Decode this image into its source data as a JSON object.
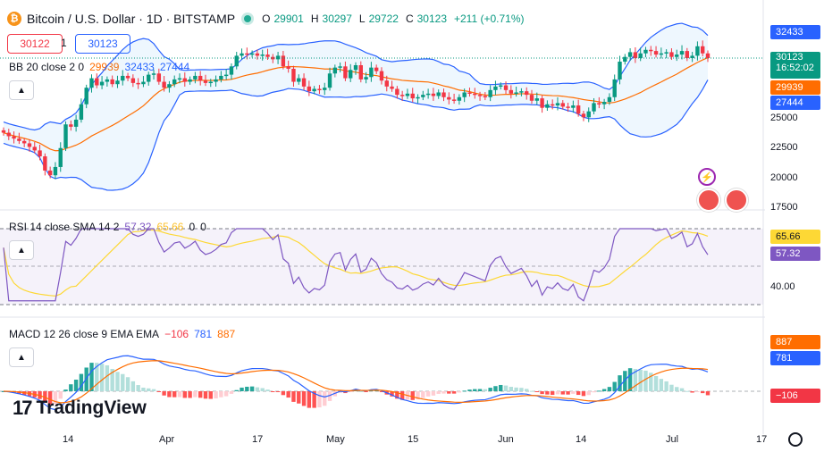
{
  "header": {
    "coin_glyph": "₿",
    "title": "Bitcoin / U.S. Dollar · 1D · BITSTAMP",
    "o_key": "O",
    "o_val": "29901",
    "h_key": "H",
    "h_val": "30297",
    "l_key": "L",
    "l_val": "29722",
    "c_key": "C",
    "c_val": "30123",
    "change": "+211 (+0.71%)"
  },
  "order": {
    "sell": "30122",
    "spread": "1",
    "buy": "30123"
  },
  "bb": {
    "label": "BB 20 close 2 0",
    "basis": "29939",
    "upper": "32433",
    "lower": "27444"
  },
  "rsi": {
    "label": "RSI 14 close SMA 14 2",
    "v1": "57.32",
    "v2": "65.66",
    "v3": "0",
    "v4": "0"
  },
  "macd": {
    "label": "MACD 12 26 close 9 EMA EMA",
    "hist": "−106",
    "macd": "781",
    "signal": "887"
  },
  "price_axis": {
    "ticks": [
      "25000",
      "22500",
      "20000",
      "17500"
    ],
    "upper_tag": "32433",
    "last_price": "30123",
    "countdown": "16:52:02",
    "basis_tag": "29939",
    "lower_tag": "27444"
  },
  "rsi_axis": {
    "tag1": "65.66",
    "tag2": "57.32",
    "tick": "40.00"
  },
  "macd_axis": {
    "tag1": "887",
    "tag2": "781",
    "tag3": "−106"
  },
  "time_axis": [
    "14",
    "Apr",
    "17",
    "May",
    "15",
    "Jun",
    "14",
    "Jul",
    "17"
  ],
  "logo": {
    "glyph": "17",
    "text": "TradingView"
  },
  "colors": {
    "up": "#089981",
    "down": "#f23645",
    "bb_upper": "#2962ff",
    "bb_basis": "#ff6d00",
    "rsi": "#7e57c2",
    "rsi_sma": "#fdd835",
    "macd": "#2962ff",
    "signal": "#ff6d00"
  },
  "chart_data": {
    "type": "candlestick",
    "instrument": "Bitcoin / U.S. Dollar",
    "interval": "1D",
    "ylim": [
      17500,
      33500
    ],
    "bb_last": {
      "upper": 32433,
      "basis": 29939,
      "lower": 27444
    },
    "closes": [
      23800,
      23500,
      23300,
      23100,
      22900,
      22600,
      22300,
      21800,
      20600,
      20200,
      20900,
      22500,
      24500,
      24300,
      24900,
      26200,
      27600,
      28400,
      27800,
      28100,
      28300,
      27900,
      28200,
      28600,
      28400,
      28000,
      27900,
      28100,
      28700,
      28800,
      28100,
      27600,
      27900,
      28300,
      28400,
      28100,
      28300,
      28600,
      28200,
      28000,
      28100,
      28300,
      28600,
      28700,
      29400,
      30300,
      30500,
      30400,
      30500,
      30300,
      30400,
      30200,
      30000,
      30300,
      29400,
      29200,
      28100,
      28400,
      27700,
      27300,
      27500,
      27400,
      27600,
      28800,
      29300,
      29400,
      28400,
      29100,
      29500,
      28300,
      28500,
      29300,
      29000,
      28200,
      27700,
      27500,
      27000,
      26900,
      27100,
      26700,
      26800,
      27000,
      27100,
      26900,
      27200,
      26800,
      26600,
      26500,
      26800,
      27200,
      27100,
      27000,
      26900,
      26800,
      27400,
      27700,
      27800,
      27400,
      27100,
      27200,
      27300,
      27000,
      26500,
      26700,
      25900,
      26200,
      26100,
      26300,
      26000,
      25900,
      26100,
      25400,
      25100,
      25600,
      26300,
      26200,
      26400,
      26800,
      28300,
      29800,
      30200,
      30600,
      30100,
      30500,
      30800,
      30700,
      30400,
      30500,
      30600,
      30200,
      30400,
      30700,
      30100,
      30300,
      31100,
      30500,
      30100
    ]
  }
}
